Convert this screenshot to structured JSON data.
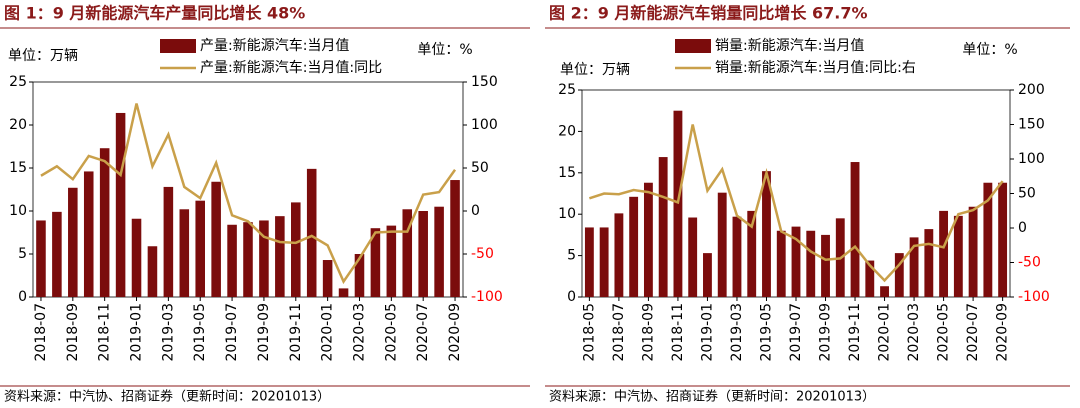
{
  "chart_data": [
    {
      "type": "bar_line",
      "title": "图 1：9 月新能源汽车产量同比增长 48%",
      "unit_left": "单位：万辆",
      "unit_right": "单位：%",
      "categories": [
        "2018-07",
        null,
        "2018-09",
        null,
        "2018-11",
        null,
        "2019-01",
        null,
        "2019-03",
        null,
        "2019-05",
        null,
        "2019-07",
        null,
        "2019-09",
        null,
        "2019-11",
        null,
        "2020-01",
        null,
        "2020-03",
        null,
        "2020-05",
        null,
        "2020-07",
        null,
        "2020-09"
      ],
      "series": [
        {
          "name": "产量:新能源汽车:当月值",
          "color": "#7b0c0c",
          "kind": "bar",
          "values": [
            8.9,
            9.9,
            12.7,
            14.6,
            17.3,
            21.4,
            9.1,
            5.9,
            12.8,
            10.2,
            11.2,
            13.4,
            8.4,
            8.7,
            8.9,
            9.4,
            11.0,
            14.9,
            4.3,
            1.0,
            5.0,
            8.0,
            8.3,
            10.2,
            10.0,
            10.5,
            13.6
          ]
        },
        {
          "name": "产量:新能源汽车:当月值:同比",
          "color": "#c9a04a",
          "kind": "line",
          "axis": "y2",
          "values": [
            41,
            52,
            37,
            64,
            58,
            42,
            125,
            52,
            89,
            28,
            15,
            56,
            -5,
            -12,
            -30,
            -36,
            -37,
            -29,
            -40,
            -82,
            -55,
            -25,
            -24,
            -24,
            19,
            22,
            48
          ]
        }
      ],
      "ylim": [
        0,
        25
      ],
      "yticks": [
        0,
        5,
        10,
        15,
        20,
        25
      ],
      "y2lim": [
        -100,
        150
      ],
      "y2ticks": [
        -100,
        -50,
        0,
        50,
        100,
        150
      ],
      "y2_negative_color": "#ff0000",
      "source": "资料来源：中汽协、招商证券（更新时间：20201013）"
    },
    {
      "type": "bar_line",
      "title": "图 2：9 月新能源汽车销量同比增长 67.7%",
      "unit_left": "单位：万辆",
      "unit_right": "单位：%",
      "categories": [
        "2018-05",
        null,
        "2018-07",
        null,
        "2018-09",
        null,
        "2018-11",
        null,
        "2019-01",
        null,
        "2019-03",
        null,
        "2019-05",
        null,
        "2019-07",
        null,
        "2019-09",
        null,
        "2019-11",
        null,
        "2020-01",
        null,
        "2020-03",
        null,
        "2020-05",
        null,
        "2020-07",
        null,
        "2020-09"
      ],
      "series": [
        {
          "name": "销量:新能源汽车:当月值",
          "color": "#7b0c0c",
          "kind": "bar",
          "values": [
            8.4,
            8.4,
            10.1,
            12.1,
            13.8,
            16.9,
            22.5,
            9.6,
            5.3,
            12.6,
            9.7,
            10.4,
            15.2,
            8.0,
            8.5,
            8.0,
            7.5,
            9.5,
            16.3,
            4.4,
            1.3,
            5.3,
            7.2,
            8.2,
            10.4,
            9.8,
            10.9,
            13.8,
            13.8
          ]
        },
        {
          "name": "销量:新能源汽车:当月值:同比:右",
          "color": "#c9a04a",
          "kind": "line",
          "axis": "y2",
          "values": [
            43,
            50,
            49,
            55,
            52,
            45,
            37,
            150,
            54,
            85,
            18,
            2,
            80,
            -5,
            -16,
            -34,
            -46,
            -44,
            -27,
            -54,
            -76,
            -53,
            -26,
            -23,
            -28,
            20,
            26,
            40,
            68
          ]
        }
      ],
      "ylim": [
        0,
        25
      ],
      "yticks": [
        0,
        5,
        10,
        15,
        20,
        25
      ],
      "y2lim": [
        -100,
        200
      ],
      "y2ticks": [
        -100,
        -50,
        0,
        50,
        100,
        150,
        200
      ],
      "y2_negative_color": "#ff0000",
      "source": "资料来源：中汽协、招商证券（更新时间：20201013）"
    }
  ]
}
